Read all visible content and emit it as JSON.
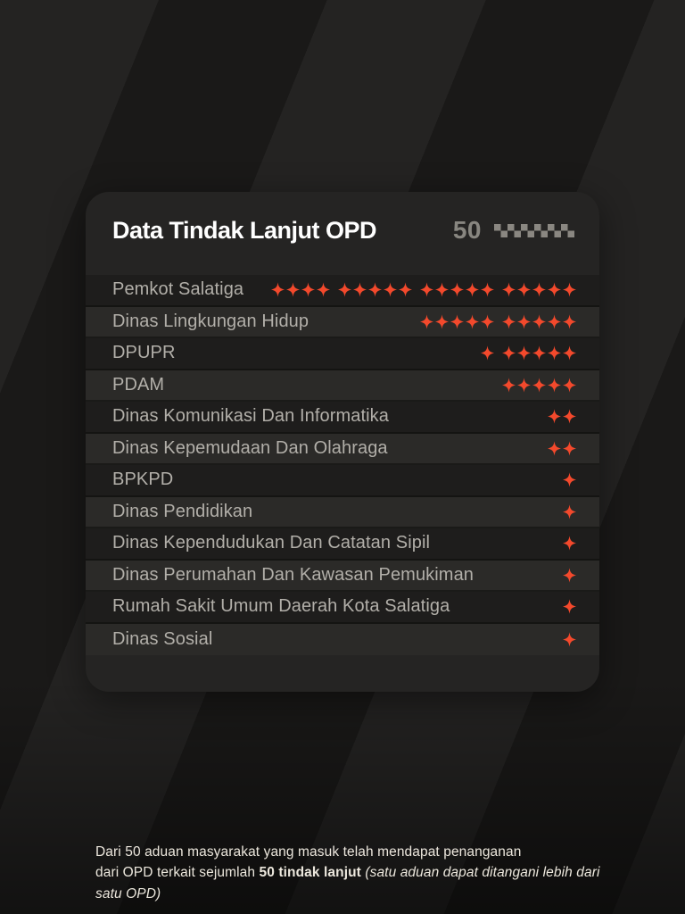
{
  "card": {
    "title": "Data Tindak Lanjut OPD",
    "total_label": "50"
  },
  "chart_data": {
    "type": "pictogram",
    "title": "Data Tindak Lanjut OPD",
    "total": 50,
    "symbol": "four-pointed-star",
    "group_size": 5,
    "categories": [
      "Pemkot Salatiga",
      "Dinas Lingkungan Hidup",
      "DPUPR",
      "PDAM",
      "Dinas Komunikasi Dan Informatika",
      "Dinas Kepemudaan Dan Olahraga",
      "BPKPD",
      "Dinas Pendidikan",
      "Dinas Kependudukan Dan Catatan Sipil",
      "Dinas Perumahan Dan Kawasan Pemukiman",
      "Rumah Sakit Umum Daerah Kota Salatiga",
      "Dinas Sosial"
    ],
    "values": [
      19,
      10,
      6,
      5,
      2,
      2,
      1,
      1,
      1,
      1,
      1,
      1
    ],
    "legend_position": "none",
    "grid": false
  },
  "checker": {
    "cols": 12,
    "rows": 2,
    "cell": 7.5,
    "color": "#8a8781"
  },
  "footer": {
    "line1": "Dari 50 aduan masyarakat yang masuk telah mendapat penanganan",
    "line2_normal": "dari OPD terkait sejumlah ",
    "line2_bold": "50 tindak lanjut",
    "line2_italic": " (satu aduan dapat ditangani lebih dari satu OPD)"
  },
  "colors": {
    "accent": "#f3492c",
    "card_bg": "#252423",
    "row_dark": "#1e1d1c",
    "row_light": "#2b2a28",
    "title": "#ffffff",
    "label": "#b2afa9",
    "muted_gray": "#888680"
  }
}
